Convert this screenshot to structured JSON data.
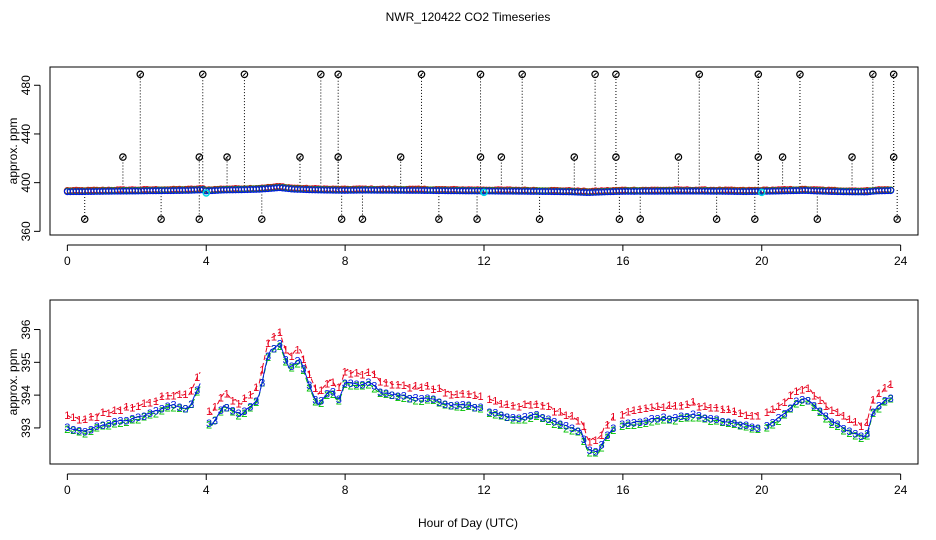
{
  "title": "NWR_120422  CO2 Timeseries",
  "colors": {
    "background": "#ffffff",
    "series1": "#e8001c",
    "series2": "#00c000",
    "series3": "#0018e0",
    "cyan": "#00d8e0",
    "axis": "#000000"
  },
  "chart_data": [
    {
      "type": "scatter",
      "panel": "top",
      "title": "NWR_120422  CO2 Timeseries",
      "xlabel": "",
      "ylabel": "approx. ppm",
      "xlim": [
        -0.5,
        24.5
      ],
      "ylim": [
        357,
        495
      ],
      "xticks": [
        "0",
        "4",
        "8",
        "12",
        "16",
        "20",
        "24"
      ],
      "yticks": [
        "360",
        "400",
        "440",
        "480"
      ],
      "baseline": [
        [
          0.0,
          393.0
        ],
        [
          0.5,
          393.1
        ],
        [
          1.0,
          393.3
        ],
        [
          1.5,
          393.5
        ],
        [
          2.0,
          393.6
        ],
        [
          2.5,
          393.8
        ],
        [
          3.0,
          393.9
        ],
        [
          3.5,
          394.1
        ],
        [
          3.9,
          394.6
        ],
        [
          4.0,
          393.6
        ],
        [
          4.5,
          394.4
        ],
        [
          5.0,
          394.6
        ],
        [
          5.5,
          395.0
        ],
        [
          5.9,
          395.8
        ],
        [
          6.1,
          396.4
        ],
        [
          6.5,
          395.1
        ],
        [
          7.0,
          394.6
        ],
        [
          7.5,
          394.3
        ],
        [
          8.0,
          394.1
        ],
        [
          8.5,
          394.3
        ],
        [
          9.0,
          394.2
        ],
        [
          10.0,
          394.1
        ],
        [
          11.0,
          393.8
        ],
        [
          12.0,
          393.6
        ],
        [
          13.0,
          393.4
        ],
        [
          14.0,
          393.1
        ],
        [
          14.5,
          392.9
        ],
        [
          15.0,
          392.3
        ],
        [
          15.5,
          392.9
        ],
        [
          16.0,
          393.3
        ],
        [
          17.0,
          393.4
        ],
        [
          18.0,
          393.5
        ],
        [
          19.0,
          393.3
        ],
        [
          19.5,
          393.1
        ],
        [
          20.0,
          393.3
        ],
        [
          20.5,
          393.6
        ],
        [
          21.0,
          393.9
        ],
        [
          21.3,
          394.0
        ],
        [
          21.5,
          393.7
        ],
        [
          22.0,
          393.2
        ],
        [
          22.5,
          392.9
        ],
        [
          23.0,
          392.8
        ],
        [
          23.3,
          393.6
        ],
        [
          23.8,
          394.0
        ]
      ],
      "outliers_high": [
        [
          2.1,
          489
        ],
        [
          3.9,
          489
        ],
        [
          5.1,
          489
        ],
        [
          7.3,
          489
        ],
        [
          7.8,
          489
        ],
        [
          10.2,
          489
        ],
        [
          11.9,
          489
        ],
        [
          13.1,
          489
        ],
        [
          15.2,
          489
        ],
        [
          15.8,
          489
        ],
        [
          18.2,
          489
        ],
        [
          19.9,
          489
        ],
        [
          21.1,
          489
        ],
        [
          23.2,
          489
        ],
        [
          23.8,
          489
        ],
        [
          1.6,
          421
        ],
        [
          3.8,
          421
        ],
        [
          4.6,
          421
        ],
        [
          6.7,
          421
        ],
        [
          7.8,
          421
        ],
        [
          9.6,
          421
        ],
        [
          11.9,
          421
        ],
        [
          12.5,
          421
        ],
        [
          14.6,
          421
        ],
        [
          15.8,
          421
        ],
        [
          17.6,
          421
        ],
        [
          19.9,
          421
        ],
        [
          20.6,
          421
        ],
        [
          22.6,
          421
        ],
        [
          23.8,
          421
        ]
      ],
      "outliers_low": [
        [
          0.5,
          370
        ],
        [
          2.7,
          370
        ],
        [
          3.8,
          370
        ],
        [
          5.6,
          370
        ],
        [
          7.9,
          370
        ],
        [
          8.5,
          370
        ],
        [
          10.7,
          370
        ],
        [
          11.8,
          370
        ],
        [
          13.6,
          370
        ],
        [
          15.9,
          370
        ],
        [
          16.5,
          370
        ],
        [
          18.7,
          370
        ],
        [
          19.8,
          370
        ],
        [
          21.6,
          370
        ],
        [
          23.9,
          370
        ]
      ],
      "cyan_points": [
        [
          4.0,
          391.5
        ],
        [
          12.0,
          392.0
        ],
        [
          20.0,
          392.0
        ]
      ]
    },
    {
      "type": "line",
      "panel": "bottom",
      "xlabel": "Hour of Day (UTC)",
      "ylabel": "approx. ppm",
      "xlim": [
        -0.5,
        24.5
      ],
      "ylim": [
        391.9,
        396.9
      ],
      "xticks": [
        "0",
        "4",
        "8",
        "12",
        "16",
        "20",
        "24"
      ],
      "yticks": [
        "393",
        "394",
        "395",
        "396"
      ],
      "series": [
        {
          "name": "1",
          "label": "1",
          "color": "#e8001c",
          "offset": 0.35
        },
        {
          "name": "2",
          "label": "2",
          "color": "#00c000",
          "offset": -0.05
        },
        {
          "name": "3",
          "label": "3",
          "color": "#0018e0",
          "offset": 0.0
        }
      ],
      "profile": [
        [
          0.0,
          393.0
        ],
        [
          0.5,
          392.9
        ],
        [
          1.0,
          393.1
        ],
        [
          1.5,
          393.2
        ],
        [
          2.0,
          393.3
        ],
        [
          2.5,
          393.5
        ],
        [
          3.0,
          393.7
        ],
        [
          3.5,
          393.6
        ],
        [
          3.9,
          394.5
        ],
        [
          4.1,
          393.0
        ],
        [
          4.5,
          393.7
        ],
        [
          5.0,
          393.4
        ],
        [
          5.5,
          393.9
        ],
        [
          5.8,
          395.3
        ],
        [
          6.1,
          395.6
        ],
        [
          6.4,
          394.8
        ],
        [
          6.7,
          395.1
        ],
        [
          7.0,
          394.2
        ],
        [
          7.2,
          393.7
        ],
        [
          7.6,
          394.2
        ],
        [
          7.8,
          393.8
        ],
        [
          8.0,
          394.4
        ],
        [
          8.4,
          394.3
        ],
        [
          8.7,
          394.4
        ],
        [
          9.0,
          394.1
        ],
        [
          9.5,
          394.0
        ],
        [
          10.0,
          393.9
        ],
        [
          10.5,
          393.9
        ],
        [
          11.0,
          393.7
        ],
        [
          11.5,
          393.7
        ],
        [
          12.0,
          393.6
        ],
        [
          12.1,
          393.5
        ],
        [
          12.5,
          393.4
        ],
        [
          13.0,
          393.3
        ],
        [
          13.5,
          393.4
        ],
        [
          14.0,
          393.2
        ],
        [
          14.5,
          393.0
        ],
        [
          14.8,
          392.9
        ],
        [
          15.0,
          392.3
        ],
        [
          15.3,
          392.3
        ],
        [
          15.5,
          392.7
        ],
        [
          15.8,
          393.1
        ],
        [
          16.0,
          393.1
        ],
        [
          16.5,
          393.2
        ],
        [
          17.0,
          393.3
        ],
        [
          17.5,
          393.3
        ],
        [
          18.0,
          393.4
        ],
        [
          18.5,
          393.3
        ],
        [
          19.0,
          393.2
        ],
        [
          19.5,
          393.1
        ],
        [
          20.0,
          393.0
        ],
        [
          20.5,
          393.3
        ],
        [
          21.0,
          393.8
        ],
        [
          21.3,
          393.9
        ],
        [
          21.6,
          393.6
        ],
        [
          22.0,
          393.2
        ],
        [
          22.5,
          392.9
        ],
        [
          23.0,
          392.7
        ],
        [
          23.2,
          393.5
        ],
        [
          23.5,
          393.8
        ],
        [
          23.8,
          394.0
        ]
      ]
    }
  ]
}
